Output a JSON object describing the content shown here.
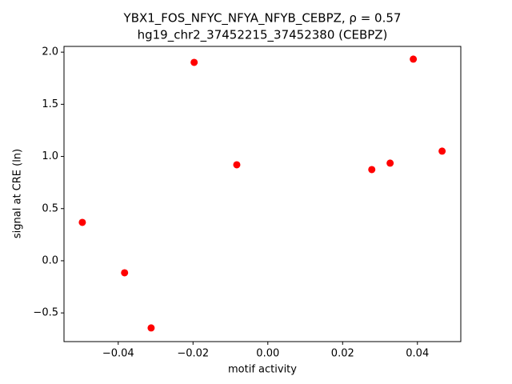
{
  "chart_data": {
    "type": "scatter",
    "title": "YBX1_FOS_NFYC_NFYA_NFYB_CEBPZ, ρ = 0.57",
    "subtitle": "hg19_chr2_37452215_37452380 (CEBPZ)",
    "xlabel": "motif activity",
    "ylabel": "signal at CRE (ln)",
    "color": "#ff0000",
    "xlim": [
      -0.0545,
      0.0516
    ],
    "ylim": [
      -0.775,
      2.055
    ],
    "xticks": [
      {
        "value": -0.04,
        "label": "−0.04"
      },
      {
        "value": -0.02,
        "label": "−0.02"
      },
      {
        "value": 0,
        "label": "0.00"
      },
      0.02,
      0.04
    ],
    "yticks": [
      {
        "value": -0.5,
        "label": "−0.5"
      },
      {
        "value": 0,
        "label": "0.0"
      },
      0.5,
      {
        "value": 1,
        "label": "1.0"
      },
      1.5,
      {
        "value": 2,
        "label": "2.0"
      }
    ],
    "x": [
      -0.0496,
      -0.0383,
      -0.0312,
      -0.0197,
      -0.0083,
      0.0278,
      0.0327,
      0.0389,
      0.0466
    ],
    "values": [
      0.368,
      -0.115,
      -0.644,
      1.902,
      0.92,
      0.874,
      0.936,
      1.933,
      1.051
    ]
  }
}
